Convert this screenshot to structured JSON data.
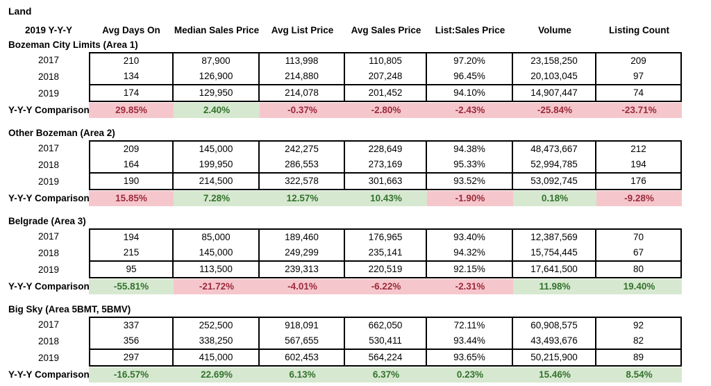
{
  "report": {
    "title": "Land",
    "period_label": "2019 Y-Y-Y",
    "comparison_label": "Y-Y-Y Comparison"
  },
  "columns": [
    "Avg Days On",
    "Median Sales Price",
    "Avg List Price",
    "Avg Sales Price",
    "List:Sales Price",
    "Volume",
    "Listing Count"
  ],
  "colors": {
    "good_bg": "#d7e8d0",
    "good_text": "#33722e",
    "bad_bg": "#f5c7cd",
    "bad_text": "#9c2b3a"
  },
  "sections": [
    {
      "name": "Bozeman City Limits (Area 1)",
      "rows": [
        {
          "year": "2017",
          "values": [
            "210",
            "87,900",
            "113,998",
            "110,805",
            "97.20%",
            "23,158,250",
            "209"
          ]
        },
        {
          "year": "2018",
          "values": [
            "134",
            "126,900",
            "214,880",
            "207,248",
            "96.45%",
            "20,103,045",
            "97"
          ]
        },
        {
          "year": "2019",
          "values": [
            "174",
            "129,950",
            "214,078",
            "201,452",
            "94.10%",
            "14,907,447",
            "74"
          ]
        }
      ],
      "comparison": [
        {
          "value": "29.85%",
          "status": "bad"
        },
        {
          "value": "2.40%",
          "status": "good"
        },
        {
          "value": "-0.37%",
          "status": "bad"
        },
        {
          "value": "-2.80%",
          "status": "bad"
        },
        {
          "value": "-2.43%",
          "status": "bad"
        },
        {
          "value": "-25.84%",
          "status": "bad"
        },
        {
          "value": "-23.71%",
          "status": "bad"
        }
      ]
    },
    {
      "name": "Other Bozeman (Area 2)",
      "rows": [
        {
          "year": "2017",
          "values": [
            "209",
            "145,000",
            "242,275",
            "228,649",
            "94.38%",
            "48,473,667",
            "212"
          ]
        },
        {
          "year": "2018",
          "values": [
            "164",
            "199,950",
            "286,553",
            "273,169",
            "95.33%",
            "52,994,785",
            "194"
          ]
        },
        {
          "year": "2019",
          "values": [
            "190",
            "214,500",
            "322,578",
            "301,663",
            "93.52%",
            "53,092,745",
            "176"
          ]
        }
      ],
      "comparison": [
        {
          "value": "15.85%",
          "status": "bad"
        },
        {
          "value": "7.28%",
          "status": "good"
        },
        {
          "value": "12.57%",
          "status": "good"
        },
        {
          "value": "10.43%",
          "status": "good"
        },
        {
          "value": "-1.90%",
          "status": "bad"
        },
        {
          "value": "0.18%",
          "status": "good"
        },
        {
          "value": "-9.28%",
          "status": "bad"
        }
      ]
    },
    {
      "name": "Belgrade (Area 3)",
      "rows": [
        {
          "year": "2017",
          "values": [
            "194",
            "85,000",
            "189,460",
            "176,965",
            "93.40%",
            "12,387,569",
            "70"
          ]
        },
        {
          "year": "2018",
          "values": [
            "215",
            "145,000",
            "249,299",
            "235,141",
            "94.32%",
            "15,754,445",
            "67"
          ]
        },
        {
          "year": "2019",
          "values": [
            "95",
            "113,500",
            "239,313",
            "220,519",
            "92.15%",
            "17,641,500",
            "80"
          ]
        }
      ],
      "comparison": [
        {
          "value": "-55.81%",
          "status": "good"
        },
        {
          "value": "-21.72%",
          "status": "bad"
        },
        {
          "value": "-4.01%",
          "status": "bad"
        },
        {
          "value": "-6.22%",
          "status": "bad"
        },
        {
          "value": "-2.31%",
          "status": "bad"
        },
        {
          "value": "11.98%",
          "status": "good"
        },
        {
          "value": "19.40%",
          "status": "good"
        }
      ]
    },
    {
      "name": "Big Sky (Area 5BMT, 5BMV)",
      "rows": [
        {
          "year": "2017",
          "values": [
            "337",
            "252,500",
            "918,091",
            "662,050",
            "72.11%",
            "60,908,575",
            "92"
          ]
        },
        {
          "year": "2018",
          "values": [
            "356",
            "338,250",
            "567,655",
            "530,411",
            "93.44%",
            "43,493,676",
            "82"
          ]
        },
        {
          "year": "2019",
          "values": [
            "297",
            "415,000",
            "602,453",
            "564,224",
            "93.65%",
            "50,215,900",
            "89"
          ]
        }
      ],
      "comparison": [
        {
          "value": "-16.57%",
          "status": "good"
        },
        {
          "value": "22.69%",
          "status": "good"
        },
        {
          "value": "6.13%",
          "status": "good"
        },
        {
          "value": "6.37%",
          "status": "good"
        },
        {
          "value": "0.23%",
          "status": "good"
        },
        {
          "value": "15.46%",
          "status": "good"
        },
        {
          "value": "8.54%",
          "status": "good"
        }
      ]
    }
  ]
}
